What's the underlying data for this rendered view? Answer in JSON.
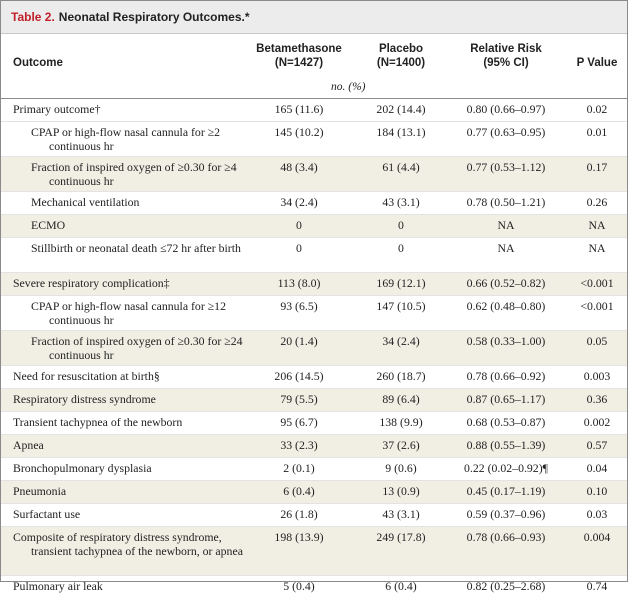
{
  "table": {
    "title_number": "Table 2.",
    "title_text": "Neonatal Respiratory Outcomes.*",
    "headers": {
      "outcome": "Outcome",
      "beta_line1": "Betamethasone",
      "beta_line2": "(N=1427)",
      "placebo_line1": "Placebo",
      "placebo_line2": "(N=1400)",
      "rr_line1": "Relative Risk",
      "rr_line2": "(95% CI)",
      "pvalue": "P Value"
    },
    "units": "no. (%)",
    "rows": [
      {
        "outcome": "Primary outcome†",
        "beta": "165 (11.6)",
        "placebo": "202 (14.4)",
        "rr": "0.80 (0.66–0.97)",
        "p": "0.02"
      },
      {
        "outcome": "CPAP or high-flow nasal cannula for ≥2 continuous hr",
        "beta": "145 (10.2)",
        "placebo": "184 (13.1)",
        "rr": "0.77 (0.63–0.95)",
        "p": "0.01"
      },
      {
        "outcome": "Fraction of inspired oxygen of ≥0.30 for ≥4 continuous hr",
        "beta": "48 (3.4)",
        "placebo": "61 (4.4)",
        "rr": "0.77 (0.53–1.12)",
        "p": "0.17"
      },
      {
        "outcome": "Mechanical ventilation",
        "beta": "34 (2.4)",
        "placebo": "43 (3.1)",
        "rr": "0.78 (0.50–1.21)",
        "p": "0.26"
      },
      {
        "outcome": "ECMO",
        "beta": "0",
        "placebo": "0",
        "rr": "NA",
        "p": "NA"
      },
      {
        "outcome": "Stillbirth or neonatal death ≤72 hr after birth",
        "beta": "0",
        "placebo": "0",
        "rr": "NA",
        "p": "NA"
      },
      {
        "outcome": "Severe respiratory complication‡",
        "beta": "113 (8.0)",
        "placebo": "169 (12.1)",
        "rr": "0.66 (0.52–0.82)",
        "p": "<0.001"
      },
      {
        "outcome": "CPAP or high-flow nasal cannula for ≥12 continuous hr",
        "beta": "93 (6.5)",
        "placebo": "147 (10.5)",
        "rr": "0.62 (0.48–0.80)",
        "p": "<0.001"
      },
      {
        "outcome": "Fraction of inspired oxygen of ≥0.30 for ≥24 continuous hr",
        "beta": "20 (1.4)",
        "placebo": "34 (2.4)",
        "rr": "0.58 (0.33–1.00)",
        "p": "0.05"
      },
      {
        "outcome": "Need for resuscitation at birth§",
        "beta": "206 (14.5)",
        "placebo": "260 (18.7)",
        "rr": "0.78 (0.66–0.92)",
        "p": "0.003"
      },
      {
        "outcome": "Respiratory distress syndrome",
        "beta": "79 (5.5)",
        "placebo": "89 (6.4)",
        "rr": "0.87 (0.65–1.17)",
        "p": "0.36"
      },
      {
        "outcome": "Transient tachypnea of the newborn",
        "beta": "95 (6.7)",
        "placebo": "138 (9.9)",
        "rr": "0.68 (0.53–0.87)",
        "p": "0.002"
      },
      {
        "outcome": "Apnea",
        "beta": "33 (2.3)",
        "placebo": "37 (2.6)",
        "rr": "0.88 (0.55–1.39)",
        "p": "0.57"
      },
      {
        "outcome": "Bronchopulmonary dysplasia",
        "beta": "2 (0.1)",
        "placebo": "9 (0.6)",
        "rr": "0.22 (0.02–0.92)¶",
        "p": "0.04"
      },
      {
        "outcome": "Pneumonia",
        "beta": "6 (0.4)",
        "placebo": "13 (0.9)",
        "rr": "0.45 (0.17–1.19)",
        "p": "0.10"
      },
      {
        "outcome": "Surfactant use",
        "beta": "26 (1.8)",
        "placebo": "43 (3.1)",
        "rr": "0.59 (0.37–0.96)",
        "p": "0.03"
      },
      {
        "outcome": "Composite of respiratory distress syndrome, transient tachypnea of the newborn, or apnea",
        "beta": "198 (13.9)",
        "placebo": "249 (17.8)",
        "rr": "0.78 (0.66–0.93)",
        "p": "0.004"
      },
      {
        "outcome": "Pulmonary air leak",
        "beta": "5 (0.4)",
        "placebo": "6 (0.4)",
        "rr": "0.82 (0.25–2.68)",
        "p": "0.74"
      }
    ]
  }
}
